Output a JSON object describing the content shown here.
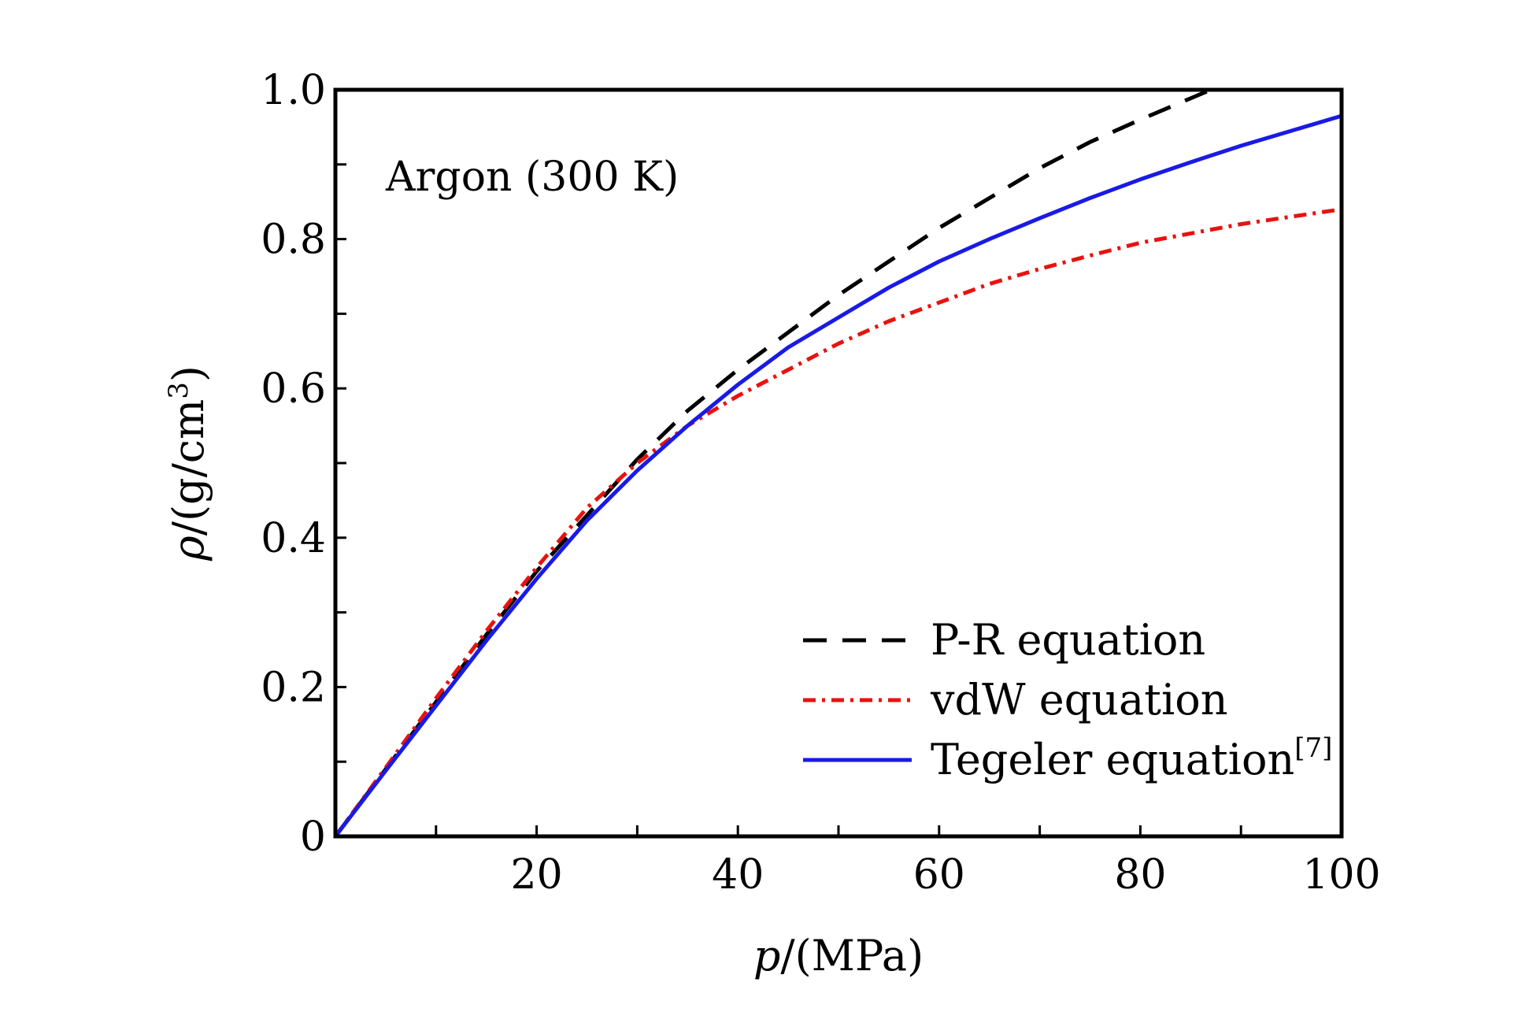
{
  "chart_data": {
    "type": "line",
    "title": "",
    "annotation": "Argon (300 K)",
    "xlabel_symbol": "p",
    "xlabel_unit": "/(MPa)",
    "ylabel_symbol": "ρ",
    "ylabel_unit": "/(g/cm",
    "ylabel_exponent": "3",
    "ylabel_close": ")",
    "xlim": [
      0,
      100
    ],
    "ylim": [
      0,
      1.0
    ],
    "x_ticks": [
      20,
      40,
      60,
      80,
      100
    ],
    "x_tick_labels": [
      "20",
      "40",
      "60",
      "80",
      "100"
    ],
    "x_minor_ticks": [
      10,
      30,
      50,
      70,
      90
    ],
    "y_ticks": [
      0,
      0.2,
      0.4,
      0.6,
      0.8,
      1.0
    ],
    "y_tick_labels": [
      "0",
      "0.2",
      "0.4",
      "0.6",
      "0.8",
      "1.0"
    ],
    "y_minor_ticks": [
      0.1,
      0.3,
      0.5,
      0.7,
      0.9
    ],
    "legend_position": "bottom-right",
    "series": [
      {
        "name": "P-R equation",
        "label_main": "P-R equation",
        "label_sup": "",
        "color": "#000000",
        "dash": "long-dash",
        "x": [
          0,
          5,
          10,
          15,
          20,
          25,
          30,
          35,
          40,
          45,
          50,
          55,
          60,
          65,
          70,
          75,
          80,
          87
        ],
        "y": [
          0,
          0.09,
          0.18,
          0.27,
          0.355,
          0.43,
          0.505,
          0.57,
          0.625,
          0.675,
          0.725,
          0.77,
          0.815,
          0.855,
          0.895,
          0.93,
          0.96,
          1.0
        ]
      },
      {
        "name": "vdW equation",
        "label_main": "vdW equation",
        "label_sup": "",
        "color": "#e8120f",
        "dash": "dash-dot",
        "x": [
          0,
          5,
          10,
          15,
          20,
          25,
          30,
          35,
          40,
          45,
          50,
          55,
          60,
          65,
          70,
          75,
          80,
          90,
          100
        ],
        "y": [
          0,
          0.092,
          0.185,
          0.275,
          0.36,
          0.44,
          0.5,
          0.55,
          0.59,
          0.625,
          0.66,
          0.69,
          0.715,
          0.74,
          0.76,
          0.778,
          0.795,
          0.82,
          0.84
        ]
      },
      {
        "name": "Tegeler equation[7]",
        "label_main": "Tegeler equation",
        "label_sup": "[7]",
        "color": "#1a1ae6",
        "dash": "solid",
        "x": [
          0,
          5,
          10,
          15,
          20,
          25,
          30,
          35,
          40,
          45,
          50,
          55,
          60,
          65,
          70,
          75,
          80,
          85,
          90,
          95,
          100
        ],
        "y": [
          0,
          0.088,
          0.175,
          0.262,
          0.345,
          0.423,
          0.49,
          0.55,
          0.605,
          0.655,
          0.695,
          0.735,
          0.77,
          0.8,
          0.828,
          0.855,
          0.88,
          0.903,
          0.925,
          0.945,
          0.965
        ]
      }
    ]
  }
}
